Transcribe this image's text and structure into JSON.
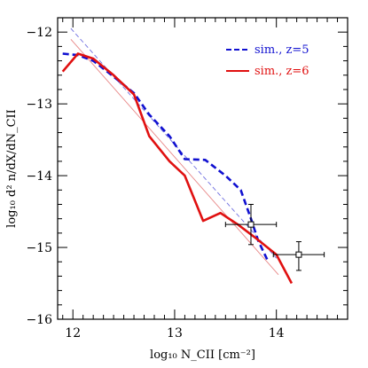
{
  "chart_data": {
    "type": "line",
    "xlabel": "log₁₀ N_CII [cm⁻²]",
    "ylabel": "log₁₀ d² n/dX/dN_CII",
    "xlim": [
      11.85,
      14.7
    ],
    "ylim": [
      -16,
      -11.8
    ],
    "xticks": [
      12,
      13,
      14
    ],
    "xtick_labels": [
      "12",
      "13",
      "14"
    ],
    "yticks": [
      -12,
      -13,
      -14,
      -15,
      -16
    ],
    "ytick_labels": [
      "−12",
      "−13",
      "−14",
      "−15",
      "−16"
    ],
    "legend_position": "top-right",
    "series": [
      {
        "name": "sim., z=5",
        "style": "dashed",
        "color": "#1010d0",
        "x": [
          11.9,
          12.05,
          12.2,
          12.4,
          12.6,
          12.75,
          12.95,
          13.1,
          13.3,
          13.5,
          13.65,
          13.75,
          13.82,
          13.92
        ],
        "y": [
          -12.3,
          -12.32,
          -12.4,
          -12.62,
          -12.85,
          -13.15,
          -13.45,
          -13.77,
          -13.78,
          -14.0,
          -14.2,
          -14.6,
          -14.9,
          -15.2
        ]
      },
      {
        "name": "sim., z=6",
        "style": "solid",
        "color": "#e01010",
        "x": [
          11.9,
          12.05,
          12.2,
          12.4,
          12.6,
          12.75,
          12.95,
          13.1,
          13.28,
          13.45,
          13.62,
          13.78,
          14.0,
          14.15
        ],
        "y": [
          -12.55,
          -12.3,
          -12.37,
          -12.6,
          -12.87,
          -13.45,
          -13.8,
          -14.0,
          -14.63,
          -14.52,
          -14.68,
          -14.85,
          -15.1,
          -15.5
        ]
      },
      {
        "name": "",
        "style": "thin-dashed",
        "color": "#6f6fe0",
        "x": [
          11.98,
          14.0
        ],
        "y": [
          -11.95,
          -15.15
        ]
      },
      {
        "name": "",
        "style": "thin-solid",
        "color": "#e88888",
        "x": [
          11.98,
          14.02
        ],
        "y": [
          -12.1,
          -15.38
        ]
      }
    ],
    "observations": [
      {
        "x": 13.75,
        "y": -14.68,
        "xerr": 0.25,
        "yerr_low": 0.28,
        "yerr_high": 0.28
      },
      {
        "x": 14.22,
        "y": -15.1,
        "xerr": 0.25,
        "yerr_low": 0.22,
        "yerr_high": 0.18
      }
    ]
  }
}
